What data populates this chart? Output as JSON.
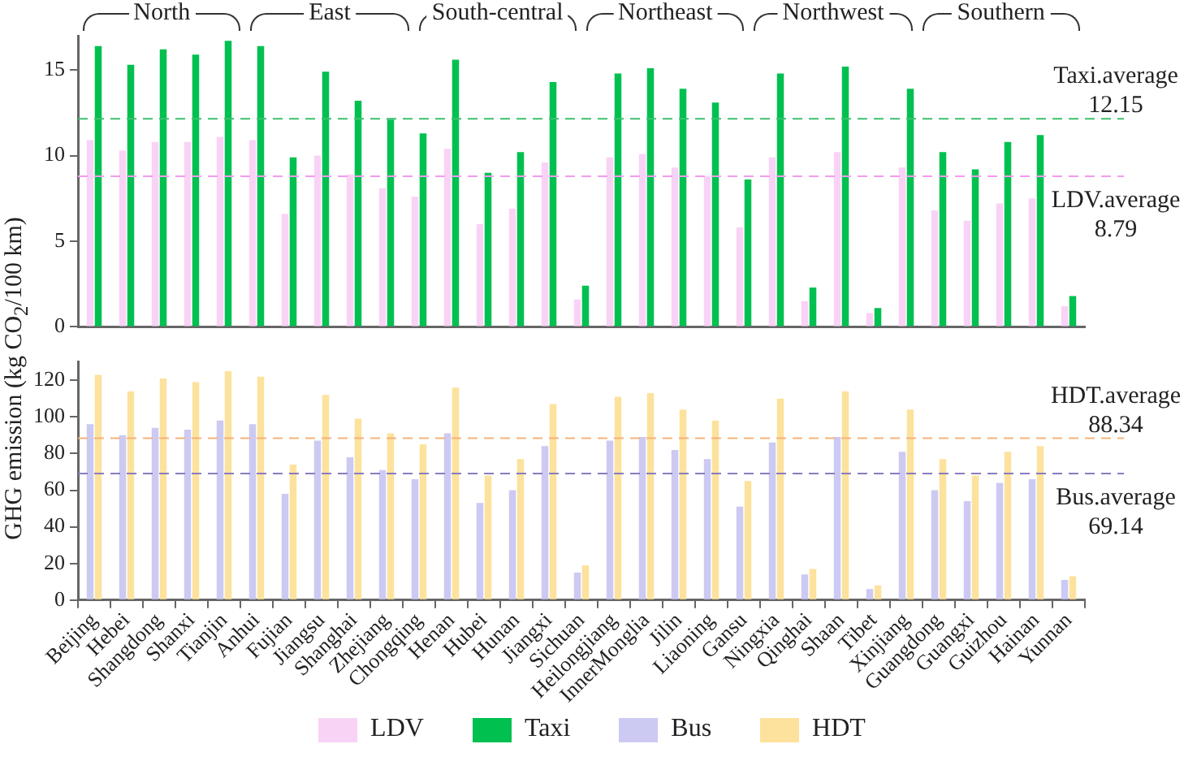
{
  "chart_data": [
    {
      "type": "bar",
      "ylabel": "GHG emission (kg CO$_{2}$/100 km)",
      "series": [
        {
          "name": "LDV",
          "color": "#f9d3f6",
          "values": [
            10.9,
            10.3,
            10.8,
            10.8,
            11.1,
            10.9,
            6.6,
            10.0,
            8.9,
            8.1,
            7.6,
            10.4,
            6.0,
            6.9,
            9.6,
            1.6,
            9.9,
            10.1,
            9.3,
            8.8,
            5.8,
            9.9,
            1.5,
            10.2,
            0.8,
            9.3,
            6.8,
            6.2,
            7.2,
            7.5,
            1.2
          ]
        },
        {
          "name": "Taxi",
          "color": "#00c050",
          "values": [
            16.4,
            15.3,
            16.2,
            15.9,
            16.7,
            16.4,
            9.9,
            14.9,
            13.2,
            12.1,
            11.3,
            15.6,
            9.0,
            10.2,
            14.3,
            2.4,
            14.8,
            15.1,
            13.9,
            13.1,
            8.6,
            14.8,
            2.3,
            15.2,
            1.1,
            13.9,
            10.2,
            9.2,
            10.8,
            11.2,
            1.8
          ]
        }
      ],
      "ylim": [
        0,
        17
      ],
      "yticks": [
        0,
        5,
        10,
        15
      ],
      "tick_labels": "y",
      "legend": "bottom",
      "ref_lines": [
        {
          "axis": "y",
          "value": 12.15,
          "label": "Taxi.average 12.15",
          "color": "#3cc06e",
          "line_style": "dashed"
        },
        {
          "axis": "y",
          "value": 8.79,
          "label": "LDV.average 8.79",
          "color": "#f29cf0",
          "line_style": "dashed"
        }
      ],
      "annotations": [
        "North",
        "East",
        "South-central",
        "Northeast",
        "Northwest",
        "Southern"
      ]
    },
    {
      "type": "bar",
      "categories": [
        "Beijing",
        "Hebei",
        "Shangdong",
        "Shanxi",
        "Tianjin",
        "Anhui",
        "Fujian",
        "Jiangsu",
        "Shanghai",
        "Zhejiang",
        "Chongqing",
        "Henan",
        "Hubei",
        "Hunan",
        "Jiangxi",
        "Sichuan",
        "Heilongjiang",
        "InnerMonglia",
        "Jilin",
        "Liaoning",
        "Gansu",
        "Ningxia",
        "Qinghai",
        "Shaan",
        "Tibet",
        "Xinjiang",
        "Guangdong",
        "Guangxi",
        "Guizhou",
        "Hainan",
        "Yunnan"
      ],
      "series": [
        {
          "name": "Bus",
          "color": "#cccaf2",
          "values": [
            96,
            90,
            94,
            93,
            98,
            96,
            58,
            87,
            78,
            71,
            66,
            91,
            53,
            60,
            84,
            15,
            87,
            89,
            82,
            77,
            51,
            86,
            14,
            89,
            6,
            81,
            60,
            54,
            64,
            66,
            11
          ]
        },
        {
          "name": "HDT",
          "color": "#fce29c",
          "values": [
            123,
            114,
            121,
            119,
            125,
            122,
            74,
            112,
            99,
            91,
            85,
            116,
            68,
            77,
            107,
            19,
            111,
            113,
            104,
            98,
            65,
            110,
            17,
            114,
            8,
            104,
            77,
            68,
            81,
            84,
            13
          ]
        }
      ],
      "ylim": [
        0,
        130
      ],
      "yticks": [
        0,
        20,
        40,
        60,
        80,
        100,
        120
      ],
      "legend": "bottom",
      "ref_lines": [
        {
          "axis": "y",
          "value": 88.34,
          "label": "HDT.average 88.34",
          "color": "#f5b27a",
          "line_style": "dashed"
        },
        {
          "axis": "y",
          "value": 69.14,
          "label": "Bus.average 69.14",
          "color": "#8a7bc0",
          "line_style": "dashed"
        }
      ]
    }
  ]
}
